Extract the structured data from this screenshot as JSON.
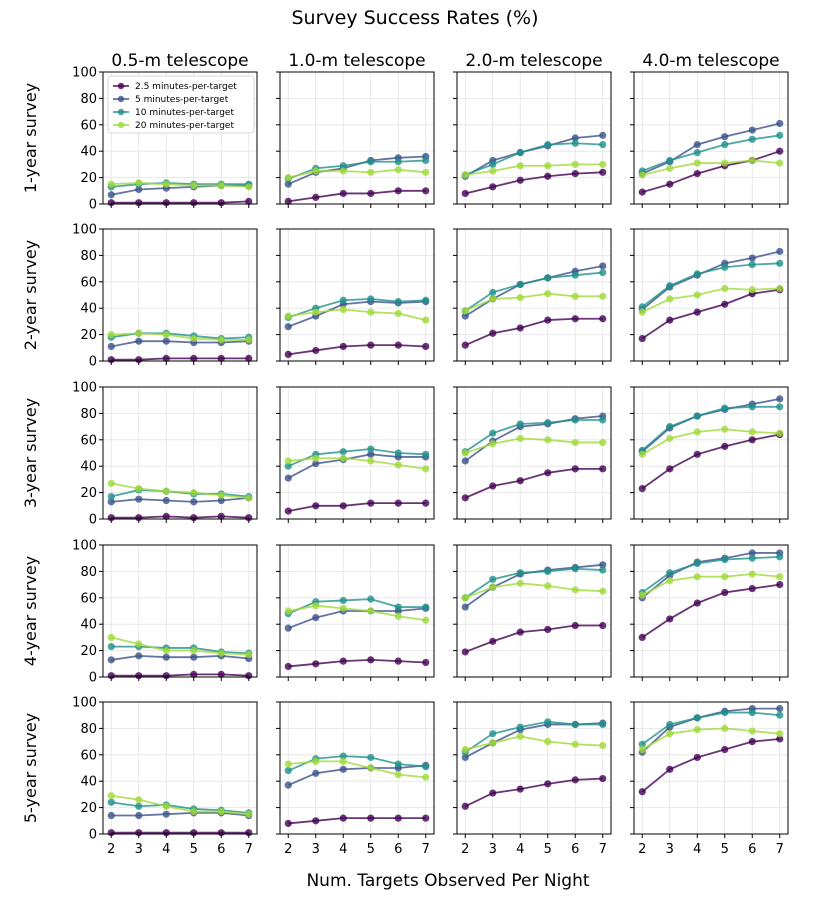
{
  "title": "Survey Success Rates (%)",
  "xlabel": "Num. Targets Observed Per Night",
  "columns": [
    "0.5-m telescope",
    "1.0-m telescope",
    "2.0-m telescope",
    "4.0-m telescope"
  ],
  "rows": [
    "1-year survey",
    "2-year survey",
    "3-year survey",
    "4-year survey",
    "5-year survey"
  ],
  "legend": {
    "placement": "top-left of first panel",
    "entries": [
      "2.5 minutes-per-target",
      "5 minutes-per-target",
      "10 minutes-per-target",
      "20 minutes-per-target"
    ]
  },
  "series_colors": [
    "#440154",
    "#3b528b",
    "#21918c",
    "#a0da39"
  ],
  "chart_data": {
    "type": "line",
    "layout": "5x4 grid of small multiples, shared axes",
    "x": [
      2,
      3,
      4,
      5,
      6,
      7
    ],
    "x_ticks": [
      2,
      3,
      4,
      5,
      6,
      7
    ],
    "xlim": [
      1.7,
      7.3
    ],
    "y_ticks": [
      0,
      20,
      40,
      60,
      80,
      100
    ],
    "ylim": [
      0,
      100
    ],
    "grid": true,
    "series_names": [
      "2.5 minutes-per-target",
      "5 minutes-per-target",
      "10 minutes-per-target",
      "20 minutes-per-target"
    ],
    "panels": [
      {
        "row": "1-year survey",
        "column": "0.5-m telescope",
        "series": [
          [
            1,
            1,
            1,
            1,
            1,
            2
          ],
          [
            7,
            11,
            12,
            13,
            14,
            14
          ],
          [
            13,
            15,
            16,
            15,
            15,
            15
          ],
          [
            15,
            16,
            15,
            14,
            14,
            13
          ]
        ]
      },
      {
        "row": "1-year survey",
        "column": "1.0-m telescope",
        "series": [
          [
            2,
            5,
            8,
            8,
            10,
            10
          ],
          [
            15,
            24,
            27,
            33,
            35,
            36
          ],
          [
            19,
            27,
            29,
            32,
            32,
            33
          ],
          [
            20,
            25,
            25,
            24,
            26,
            24
          ]
        ]
      },
      {
        "row": "1-year survey",
        "column": "2.0-m telescope",
        "series": [
          [
            8,
            13,
            18,
            21,
            23,
            24
          ],
          [
            21,
            33,
            39,
            44,
            50,
            52
          ],
          [
            22,
            30,
            39,
            45,
            46,
            45
          ],
          [
            22,
            25,
            29,
            29,
            30,
            30
          ]
        ]
      },
      {
        "row": "1-year survey",
        "column": "4.0-m telescope",
        "series": [
          [
            9,
            15,
            23,
            29,
            33,
            40
          ],
          [
            23,
            32,
            45,
            51,
            56,
            61
          ],
          [
            25,
            33,
            39,
            45,
            49,
            52
          ],
          [
            22,
            27,
            31,
            31,
            33,
            31
          ]
        ]
      },
      {
        "row": "2-year survey",
        "column": "0.5-m telescope",
        "series": [
          [
            1,
            1,
            2,
            2,
            2,
            2
          ],
          [
            11,
            15,
            15,
            14,
            14,
            15
          ],
          [
            18,
            21,
            21,
            19,
            17,
            18
          ],
          [
            20,
            21,
            20,
            17,
            16,
            16
          ]
        ]
      },
      {
        "row": "2-year survey",
        "column": "1.0-m telescope",
        "series": [
          [
            5,
            8,
            11,
            12,
            12,
            11
          ],
          [
            26,
            34,
            43,
            45,
            44,
            45
          ],
          [
            33,
            40,
            46,
            47,
            45,
            46
          ],
          [
            34,
            37,
            39,
            37,
            36,
            31
          ]
        ]
      },
      {
        "row": "2-year survey",
        "column": "2.0-m telescope",
        "series": [
          [
            12,
            21,
            25,
            31,
            32,
            32
          ],
          [
            34,
            47,
            58,
            63,
            68,
            72
          ],
          [
            38,
            52,
            58,
            63,
            65,
            67
          ],
          [
            38,
            47,
            48,
            51,
            49,
            49
          ]
        ]
      },
      {
        "row": "2-year survey",
        "column": "4.0-m telescope",
        "series": [
          [
            17,
            31,
            37,
            43,
            51,
            54
          ],
          [
            39,
            56,
            65,
            74,
            78,
            83
          ],
          [
            41,
            57,
            66,
            71,
            73,
            74
          ],
          [
            37,
            47,
            50,
            55,
            54,
            55
          ]
        ]
      },
      {
        "row": "3-year survey",
        "column": "0.5-m telescope",
        "series": [
          [
            1,
            1,
            2,
            1,
            2,
            1
          ],
          [
            13,
            15,
            14,
            13,
            14,
            16
          ],
          [
            17,
            22,
            21,
            19,
            19,
            17
          ],
          [
            27,
            23,
            21,
            20,
            18,
            16
          ]
        ]
      },
      {
        "row": "3-year survey",
        "column": "1.0-m telescope",
        "series": [
          [
            6,
            10,
            10,
            12,
            12,
            12
          ],
          [
            31,
            42,
            45,
            49,
            47,
            47
          ],
          [
            40,
            49,
            51,
            53,
            50,
            49
          ],
          [
            44,
            46,
            46,
            44,
            41,
            38
          ]
        ]
      },
      {
        "row": "3-year survey",
        "column": "2.0-m telescope",
        "series": [
          [
            16,
            25,
            29,
            35,
            38,
            38
          ],
          [
            44,
            59,
            70,
            72,
            76,
            78
          ],
          [
            51,
            65,
            72,
            73,
            75,
            75
          ],
          [
            50,
            57,
            61,
            60,
            58,
            58
          ]
        ]
      },
      {
        "row": "3-year survey",
        "column": "4.0-m telescope",
        "series": [
          [
            23,
            38,
            49,
            55,
            60,
            64
          ],
          [
            51,
            69,
            78,
            83,
            87,
            91
          ],
          [
            52,
            70,
            78,
            84,
            85,
            85
          ],
          [
            49,
            61,
            66,
            68,
            66,
            65
          ]
        ]
      },
      {
        "row": "4-year survey",
        "column": "0.5-m telescope",
        "series": [
          [
            1,
            1,
            1,
            2,
            2,
            1
          ],
          [
            13,
            16,
            15,
            15,
            16,
            14
          ],
          [
            23,
            23,
            22,
            22,
            19,
            18
          ],
          [
            30,
            25,
            20,
            20,
            18,
            17
          ]
        ]
      },
      {
        "row": "4-year survey",
        "column": "1.0-m telescope",
        "series": [
          [
            8,
            10,
            12,
            13,
            12,
            11
          ],
          [
            37,
            45,
            50,
            50,
            50,
            52
          ],
          [
            48,
            57,
            58,
            59,
            53,
            53
          ],
          [
            50,
            54,
            52,
            50,
            46,
            43
          ]
        ]
      },
      {
        "row": "4-year survey",
        "column": "2.0-m telescope",
        "series": [
          [
            19,
            27,
            34,
            36,
            39,
            39
          ],
          [
            53,
            68,
            78,
            81,
            83,
            85
          ],
          [
            60,
            74,
            79,
            80,
            82,
            81
          ],
          [
            60,
            68,
            71,
            69,
            66,
            65
          ]
        ]
      },
      {
        "row": "4-year survey",
        "column": "4.0-m telescope",
        "series": [
          [
            30,
            44,
            56,
            64,
            67,
            70
          ],
          [
            60,
            77,
            87,
            90,
            94,
            94
          ],
          [
            64,
            79,
            86,
            89,
            90,
            91
          ],
          [
            62,
            73,
            76,
            76,
            78,
            76
          ]
        ]
      },
      {
        "row": "5-year survey",
        "column": "0.5-m telescope",
        "series": [
          [
            1,
            1,
            1,
            1,
            1,
            1
          ],
          [
            14,
            14,
            15,
            16,
            16,
            14
          ],
          [
            24,
            21,
            22,
            19,
            18,
            16
          ],
          [
            29,
            26,
            21,
            17,
            17,
            15
          ]
        ]
      },
      {
        "row": "5-year survey",
        "column": "1.0-m telescope",
        "series": [
          [
            8,
            10,
            12,
            12,
            12,
            12
          ],
          [
            37,
            46,
            49,
            50,
            50,
            52
          ],
          [
            48,
            57,
            59,
            58,
            53,
            51
          ],
          [
            53,
            55,
            55,
            50,
            45,
            43
          ]
        ]
      },
      {
        "row": "5-year survey",
        "column": "2.0-m telescope",
        "series": [
          [
            21,
            31,
            34,
            38,
            41,
            42
          ],
          [
            58,
            69,
            79,
            83,
            83,
            84
          ],
          [
            62,
            76,
            81,
            85,
            83,
            83
          ],
          [
            64,
            69,
            74,
            70,
            68,
            67
          ]
        ]
      },
      {
        "row": "5-year survey",
        "column": "4.0-m telescope",
        "series": [
          [
            32,
            49,
            58,
            64,
            70,
            72
          ],
          [
            62,
            81,
            88,
            93,
            95,
            95
          ],
          [
            68,
            83,
            88,
            92,
            92,
            90
          ],
          [
            64,
            76,
            79,
            80,
            78,
            76
          ]
        ]
      }
    ]
  }
}
